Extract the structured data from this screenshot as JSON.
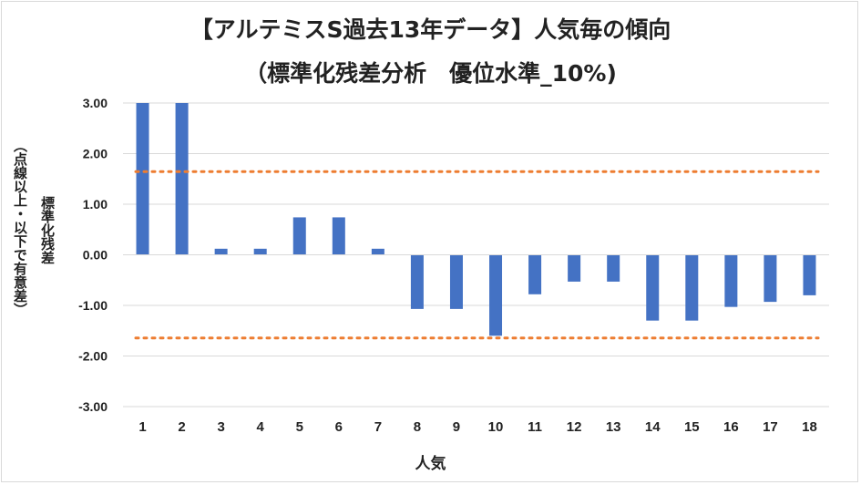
{
  "chart_data": {
    "type": "bar",
    "title": "【アルテミスS過去13年データ】人気毎の傾向",
    "subtitle": "（標準化残差分析　優位水準_10%)",
    "xlabel": "人気",
    "ylabel": "標準化残差",
    "ylabel_note": "（点線以上・以下で有意差）",
    "categories": [
      "1",
      "2",
      "3",
      "4",
      "5",
      "6",
      "7",
      "8",
      "9",
      "10",
      "11",
      "12",
      "13",
      "14",
      "15",
      "16",
      "17",
      "18"
    ],
    "values": [
      3.0,
      3.0,
      0.12,
      0.12,
      0.74,
      0.74,
      0.12,
      -1.07,
      -1.07,
      -1.6,
      -0.78,
      -0.53,
      -0.53,
      -1.3,
      -1.3,
      -1.03,
      -0.93,
      -0.8
    ],
    "ylim": [
      -3.0,
      3.0
    ],
    "yticks": [
      "3.00",
      "2.00",
      "1.00",
      "0.00",
      "-1.00",
      "-2.00",
      "-3.00"
    ],
    "threshold_lines": [
      1.645,
      -1.645
    ],
    "colors": {
      "bar": "#4472c4",
      "threshold": "#ed7d31",
      "grid": "#d9d9d9"
    }
  }
}
